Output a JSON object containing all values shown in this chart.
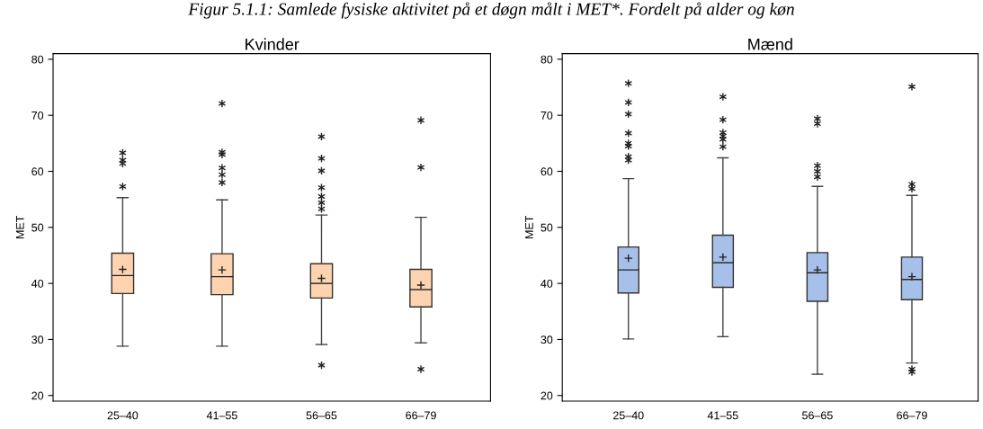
{
  "chart_data": [
    {
      "type": "box",
      "title": "Kvinder",
      "ylabel": "MET",
      "annotations": [
        "Figur 5.1.1: Samlede fysiske aktivitet på et døgn målt i MET*. Fordelt på alder og køn"
      ],
      "categories": [
        "25–40",
        "41–55",
        "56–65",
        "66–79"
      ],
      "color": "#fdd3b0",
      "ylim": [
        19,
        81
      ],
      "yticks": [
        20,
        30,
        40,
        50,
        60,
        70,
        80
      ],
      "grid": false,
      "marker": "star",
      "boxes": [
        {
          "low": 28.8,
          "q1": 38.2,
          "median": 41.4,
          "q3": 45.4,
          "high": 55.3,
          "mean": 42.5,
          "outliers": [
            63.3,
            62.0,
            61.4,
            57.3
          ]
        },
        {
          "low": 28.8,
          "q1": 38.0,
          "median": 41.2,
          "q3": 45.3,
          "high": 54.9,
          "mean": 42.4,
          "outliers": [
            72.1,
            63.4,
            63.0,
            60.6,
            59.4,
            58.0
          ]
        },
        {
          "low": 29.1,
          "q1": 37.4,
          "median": 40.0,
          "q3": 43.5,
          "high": 52.2,
          "mean": 40.9,
          "outliers": [
            66.2,
            62.3,
            60.1,
            57.1,
            55.5,
            54.4,
            53.3,
            25.4
          ]
        },
        {
          "low": 29.4,
          "q1": 35.8,
          "median": 38.9,
          "q3": 42.5,
          "high": 51.8,
          "mean": 39.7,
          "outliers": [
            69.1,
            60.7,
            24.7
          ]
        }
      ]
    },
    {
      "type": "box",
      "title": "Mænd",
      "ylabel": "MET",
      "categories": [
        "25–40",
        "41–55",
        "56–65",
        "66–79"
      ],
      "color": "#a7c0ea",
      "ylim": [
        19,
        81
      ],
      "yticks": [
        20,
        30,
        40,
        50,
        60,
        70,
        80
      ],
      "grid": false,
      "marker": "star",
      "boxes": [
        {
          "low": 30.1,
          "q1": 38.3,
          "median": 42.4,
          "q3": 46.5,
          "high": 58.7,
          "mean": 44.5,
          "outliers": [
            75.7,
            72.3,
            70.2,
            66.8,
            65.0,
            64.5,
            62.6,
            62.0
          ]
        },
        {
          "low": 30.5,
          "q1": 39.3,
          "median": 43.7,
          "q3": 48.6,
          "high": 62.4,
          "mean": 44.7,
          "outliers": [
            73.3,
            69.2,
            66.9,
            66.3,
            65.7,
            64.4
          ]
        },
        {
          "low": 23.8,
          "q1": 36.8,
          "median": 41.9,
          "q3": 45.5,
          "high": 57.3,
          "mean": 42.4,
          "outliers": [
            69.4,
            68.5,
            61.0,
            60.0,
            59.0
          ]
        },
        {
          "low": 25.8,
          "q1": 37.1,
          "median": 40.7,
          "q3": 44.7,
          "high": 55.7,
          "mean": 41.2,
          "outliers": [
            75.1,
            57.7,
            56.9,
            24.7,
            24.2
          ]
        }
      ]
    }
  ]
}
